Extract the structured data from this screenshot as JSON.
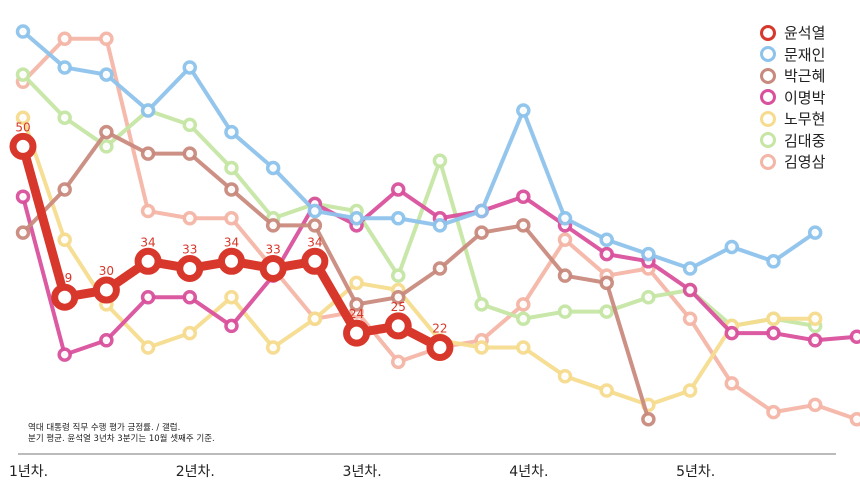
{
  "chart_data": {
    "type": "line",
    "x_axis": {
      "ticks": [
        {
          "x": 0,
          "label": "1년차."
        },
        {
          "x": 4,
          "label": "2년차."
        },
        {
          "x": 8,
          "label": "3년차."
        },
        {
          "x": 12,
          "label": "4년차."
        },
        {
          "x": 16,
          "label": "5년차."
        }
      ],
      "range": [
        0,
        19.5
      ]
    },
    "y_axis": {
      "range": [
        8,
        69
      ],
      "ticks_shown": false
    },
    "grid": false,
    "legend_position": "top-right",
    "series": [
      {
        "name": "김영삼",
        "color": "#f4b6a6",
        "highlight": false,
        "values": [
          59,
          65,
          65,
          41,
          40,
          40,
          33,
          26,
          27,
          20,
          22,
          23,
          28,
          37,
          32,
          33,
          26,
          17,
          13,
          14,
          12
        ]
      },
      {
        "name": "김대중",
        "color": "#c5e6a4",
        "highlight": false,
        "values": [
          60,
          54,
          50,
          55,
          53,
          47,
          40,
          42,
          41,
          32,
          48,
          28,
          26,
          27,
          27,
          29,
          30,
          25,
          26,
          25
        ]
      },
      {
        "name": "노무현",
        "color": "#f6dc8e",
        "highlight": false,
        "values": [
          54,
          37,
          28,
          22,
          24,
          29,
          22,
          26,
          31,
          30,
          23,
          22,
          22,
          18,
          16,
          14,
          16,
          25,
          26,
          26
        ]
      },
      {
        "name": "이명박",
        "color": "#d9519c",
        "highlight": false,
        "values": [
          43,
          21,
          23,
          29,
          29,
          25,
          32,
          42,
          39,
          44,
          40,
          41,
          43,
          39,
          35,
          34,
          30,
          24,
          24,
          23,
          23.5
        ]
      },
      {
        "name": "박근혜",
        "color": "#c98a7e",
        "highlight": false,
        "values": [
          38,
          44,
          52,
          49,
          49,
          44,
          39,
          39,
          28,
          29,
          33,
          38,
          39,
          32,
          31,
          12
        ]
      },
      {
        "name": "문재인",
        "color": "#8ec3ec",
        "highlight": false,
        "values": [
          66,
          61,
          60,
          55,
          61,
          52,
          47,
          41,
          40,
          40,
          39,
          41,
          55,
          40,
          37,
          35,
          33,
          36,
          34,
          38
        ]
      },
      {
        "name": "윤석열",
        "color": "#d8382b",
        "highlight": true,
        "values": [
          50,
          29,
          30,
          34,
          33,
          34,
          33,
          34,
          24,
          25,
          22
        ],
        "data_labels": [
          "50",
          "29",
          "30",
          "34",
          "33",
          "34",
          "33",
          "34",
          "24",
          "25",
          "22"
        ]
      }
    ],
    "legend_order": [
      "윤석열",
      "문재인",
      "박근혜",
      "이명박",
      "노무현",
      "김대중",
      "김영삼"
    ]
  },
  "note": {
    "line1": "역대 대통령 직무 수행 평가 긍정률. / 갤럽.",
    "line2": "분기 평균. 윤석열 3년차 3분기는 10월 셋째주 기준."
  }
}
